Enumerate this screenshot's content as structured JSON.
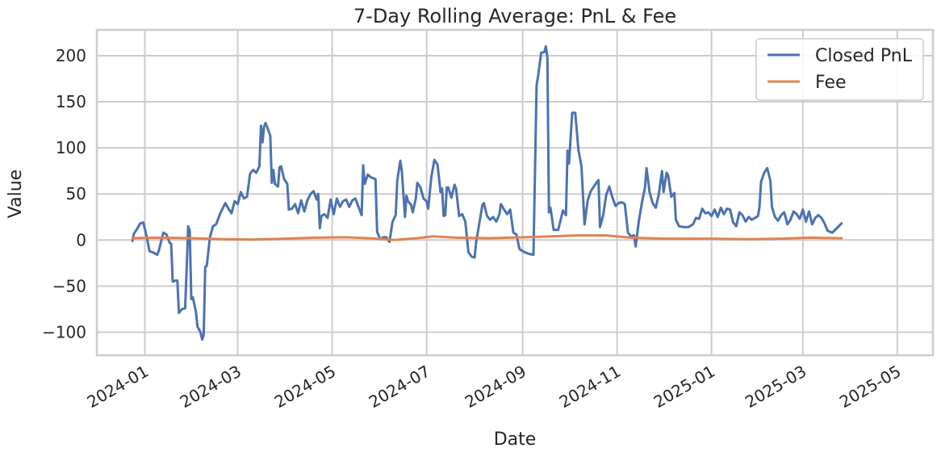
{
  "chart_data": {
    "type": "line",
    "title": "7-Day Rolling Average: PnL & Fee",
    "xlabel": "Date",
    "ylabel": "Value",
    "ylim": [
      -125,
      228
    ],
    "xlim": [
      "2023-12-01",
      "2025-05-24"
    ],
    "y_ticks": [
      -100,
      -50,
      0,
      50,
      100,
      150,
      200
    ],
    "x_ticks": [
      "2024-01",
      "2024-03",
      "2024-05",
      "2024-07",
      "2024-09",
      "2024-11",
      "2025-01",
      "2025-03",
      "2025-05"
    ],
    "grid": true,
    "legend_position": "top-right",
    "series": [
      {
        "name": "Closed PnL",
        "color": "#4c72b0",
        "points": [
          [
            "2023-12-24",
            -1
          ],
          [
            "2023-12-25",
            7
          ],
          [
            "2023-12-27",
            12
          ],
          [
            "2023-12-29",
            18
          ],
          [
            "2023-12-31",
            19
          ],
          [
            "2024-01-02",
            5
          ],
          [
            "2024-01-04",
            -12
          ],
          [
            "2024-01-07",
            -14
          ],
          [
            "2024-01-09",
            -16
          ],
          [
            "2024-01-10",
            -12
          ],
          [
            "2024-01-12",
            2
          ],
          [
            "2024-01-13",
            8
          ],
          [
            "2024-01-15",
            6
          ],
          [
            "2024-01-17",
            -3
          ],
          [
            "2024-01-18",
            -4
          ],
          [
            "2024-01-19",
            -45
          ],
          [
            "2024-01-21",
            -44
          ],
          [
            "2024-01-22",
            -44
          ],
          [
            "2024-01-23",
            -79
          ],
          [
            "2024-01-25",
            -75
          ],
          [
            "2024-01-27",
            -74
          ],
          [
            "2024-01-28",
            -31
          ],
          [
            "2024-01-29",
            15
          ],
          [
            "2024-01-30",
            10
          ],
          [
            "2024-01-31",
            -64
          ],
          [
            "2024-02-01",
            -62
          ],
          [
            "2024-02-03",
            -78
          ],
          [
            "2024-02-04",
            -94
          ],
          [
            "2024-02-06",
            -100
          ],
          [
            "2024-02-07",
            -108
          ],
          [
            "2024-02-08",
            -103
          ],
          [
            "2024-02-09",
            -29
          ],
          [
            "2024-02-10",
            -28
          ],
          [
            "2024-02-12",
            3
          ],
          [
            "2024-02-14",
            15
          ],
          [
            "2024-02-16",
            17
          ],
          [
            "2024-02-19",
            30
          ],
          [
            "2024-02-22",
            40
          ],
          [
            "2024-02-24",
            34
          ],
          [
            "2024-02-26",
            29
          ],
          [
            "2024-02-28",
            42
          ],
          [
            "2024-03-01",
            39
          ],
          [
            "2024-03-03",
            52
          ],
          [
            "2024-03-05",
            45
          ],
          [
            "2024-03-07",
            47
          ],
          [
            "2024-03-09",
            72
          ],
          [
            "2024-03-11",
            76
          ],
          [
            "2024-03-13",
            73
          ],
          [
            "2024-03-15",
            80
          ],
          [
            "2024-03-16",
            124
          ],
          [
            "2024-03-17",
            106
          ],
          [
            "2024-03-18",
            123
          ],
          [
            "2024-03-19",
            127
          ],
          [
            "2024-03-21",
            118
          ],
          [
            "2024-03-22",
            113
          ],
          [
            "2024-03-23",
            62
          ],
          [
            "2024-03-24",
            76
          ],
          [
            "2024-03-25",
            61
          ],
          [
            "2024-03-27",
            58
          ],
          [
            "2024-03-28",
            79
          ],
          [
            "2024-03-29",
            80
          ],
          [
            "2024-03-31",
            66
          ],
          [
            "2024-04-02",
            61
          ],
          [
            "2024-04-03",
            33
          ],
          [
            "2024-04-05",
            34
          ],
          [
            "2024-04-07",
            39
          ],
          [
            "2024-04-09",
            29
          ],
          [
            "2024-04-11",
            43
          ],
          [
            "2024-04-13",
            31
          ],
          [
            "2024-04-15",
            43
          ],
          [
            "2024-04-17",
            50
          ],
          [
            "2024-04-19",
            53
          ],
          [
            "2024-04-21",
            44
          ],
          [
            "2024-04-22",
            50
          ],
          [
            "2024-04-23",
            13
          ],
          [
            "2024-04-24",
            26
          ],
          [
            "2024-04-26",
            28
          ],
          [
            "2024-04-28",
            24
          ],
          [
            "2024-04-30",
            44
          ],
          [
            "2024-05-02",
            28
          ],
          [
            "2024-05-04",
            45
          ],
          [
            "2024-05-06",
            36
          ],
          [
            "2024-05-08",
            42
          ],
          [
            "2024-05-10",
            44
          ],
          [
            "2024-05-12",
            36
          ],
          [
            "2024-05-14",
            43
          ],
          [
            "2024-05-16",
            45
          ],
          [
            "2024-05-18",
            36
          ],
          [
            "2024-05-20",
            27
          ],
          [
            "2024-05-21",
            81
          ],
          [
            "2024-05-22",
            61
          ],
          [
            "2024-05-24",
            71
          ],
          [
            "2024-05-26",
            68
          ],
          [
            "2024-05-29",
            66
          ],
          [
            "2024-05-30",
            9
          ],
          [
            "2024-06-01",
            1
          ],
          [
            "2024-06-03",
            3
          ],
          [
            "2024-06-05",
            3
          ],
          [
            "2024-06-07",
            -2
          ],
          [
            "2024-06-09",
            20
          ],
          [
            "2024-06-11",
            27
          ],
          [
            "2024-06-12",
            64
          ],
          [
            "2024-06-14",
            86
          ],
          [
            "2024-06-15",
            75
          ],
          [
            "2024-06-17",
            25
          ],
          [
            "2024-06-18",
            48
          ],
          [
            "2024-06-19",
            42
          ],
          [
            "2024-06-21",
            38
          ],
          [
            "2024-06-22",
            30
          ],
          [
            "2024-06-24",
            45
          ],
          [
            "2024-06-25",
            62
          ],
          [
            "2024-06-27",
            57
          ],
          [
            "2024-06-29",
            45
          ],
          [
            "2024-07-01",
            42
          ],
          [
            "2024-07-02",
            34
          ],
          [
            "2024-07-04",
            68
          ],
          [
            "2024-07-06",
            87
          ],
          [
            "2024-07-08",
            82
          ],
          [
            "2024-07-10",
            52
          ],
          [
            "2024-07-11",
            56
          ],
          [
            "2024-07-12",
            26
          ],
          [
            "2024-07-13",
            27
          ],
          [
            "2024-07-14",
            57
          ],
          [
            "2024-07-15",
            57
          ],
          [
            "2024-07-17",
            46
          ],
          [
            "2024-07-19",
            60
          ],
          [
            "2024-07-20",
            56
          ],
          [
            "2024-07-22",
            26
          ],
          [
            "2024-07-24",
            28
          ],
          [
            "2024-07-26",
            20
          ],
          [
            "2024-07-28",
            -13
          ],
          [
            "2024-07-30",
            -18
          ],
          [
            "2024-08-01",
            -19
          ],
          [
            "2024-08-02",
            -2
          ],
          [
            "2024-08-04",
            18
          ],
          [
            "2024-08-06",
            38
          ],
          [
            "2024-08-07",
            40
          ],
          [
            "2024-08-09",
            26
          ],
          [
            "2024-08-11",
            22
          ],
          [
            "2024-08-13",
            25
          ],
          [
            "2024-08-15",
            20
          ],
          [
            "2024-08-17",
            28
          ],
          [
            "2024-08-18",
            39
          ],
          [
            "2024-08-20",
            33
          ],
          [
            "2024-08-22",
            28
          ],
          [
            "2024-08-24",
            33
          ],
          [
            "2024-08-26",
            8
          ],
          [
            "2024-08-28",
            6
          ],
          [
            "2024-08-30",
            -10
          ],
          [
            "2024-09-02",
            -13
          ],
          [
            "2024-09-05",
            -15
          ],
          [
            "2024-09-08",
            -16
          ],
          [
            "2024-09-10",
            168
          ],
          [
            "2024-09-11",
            178
          ],
          [
            "2024-09-13",
            203
          ],
          [
            "2024-09-15",
            204
          ],
          [
            "2024-09-16",
            210
          ],
          [
            "2024-09-17",
            198
          ],
          [
            "2024-09-18",
            30
          ],
          [
            "2024-09-19",
            35
          ],
          [
            "2024-09-21",
            11
          ],
          [
            "2024-09-24",
            11
          ],
          [
            "2024-09-27",
            32
          ],
          [
            "2024-09-29",
            27
          ],
          [
            "2024-09-30",
            97
          ],
          [
            "2024-10-01",
            83
          ],
          [
            "2024-10-03",
            138
          ],
          [
            "2024-10-05",
            138
          ],
          [
            "2024-10-07",
            98
          ],
          [
            "2024-10-09",
            80
          ],
          [
            "2024-10-11",
            17
          ],
          [
            "2024-10-13",
            43
          ],
          [
            "2024-10-15",
            53
          ],
          [
            "2024-10-17",
            58
          ],
          [
            "2024-10-19",
            63
          ],
          [
            "2024-10-20",
            65
          ],
          [
            "2024-10-21",
            14
          ],
          [
            "2024-10-23",
            27
          ],
          [
            "2024-10-25",
            49
          ],
          [
            "2024-10-27",
            58
          ],
          [
            "2024-10-29",
            46
          ],
          [
            "2024-10-31",
            37
          ],
          [
            "2024-11-02",
            40
          ],
          [
            "2024-11-04",
            41
          ],
          [
            "2024-11-06",
            39
          ],
          [
            "2024-11-08",
            8
          ],
          [
            "2024-11-10",
            4
          ],
          [
            "2024-11-12",
            5
          ],
          [
            "2024-11-13",
            -7
          ],
          [
            "2024-11-15",
            20
          ],
          [
            "2024-11-17",
            40
          ],
          [
            "2024-11-19",
            57
          ],
          [
            "2024-11-20",
            78
          ],
          [
            "2024-11-22",
            52
          ],
          [
            "2024-11-24",
            40
          ],
          [
            "2024-11-26",
            35
          ],
          [
            "2024-11-28",
            50
          ],
          [
            "2024-11-30",
            75
          ],
          [
            "2024-12-01",
            52
          ],
          [
            "2024-12-03",
            73
          ],
          [
            "2024-12-04",
            70
          ],
          [
            "2024-12-06",
            47
          ],
          [
            "2024-12-08",
            51
          ],
          [
            "2024-12-09",
            22
          ],
          [
            "2024-12-11",
            15
          ],
          [
            "2024-12-14",
            14
          ],
          [
            "2024-12-17",
            14
          ],
          [
            "2024-12-20",
            17
          ],
          [
            "2024-12-22",
            24
          ],
          [
            "2024-12-24",
            23
          ],
          [
            "2024-12-26",
            34
          ],
          [
            "2024-12-28",
            29
          ],
          [
            "2024-12-30",
            30
          ],
          [
            "2025-01-01",
            26
          ],
          [
            "2025-01-03",
            33
          ],
          [
            "2025-01-05",
            25
          ],
          [
            "2025-01-07",
            35
          ],
          [
            "2025-01-09",
            28
          ],
          [
            "2025-01-11",
            34
          ],
          [
            "2025-01-13",
            33
          ],
          [
            "2025-01-15",
            19
          ],
          [
            "2025-01-17",
            15
          ],
          [
            "2025-01-19",
            30
          ],
          [
            "2025-01-21",
            27
          ],
          [
            "2025-01-23",
            20
          ],
          [
            "2025-01-25",
            25
          ],
          [
            "2025-01-27",
            22
          ],
          [
            "2025-01-29",
            24
          ],
          [
            "2025-01-31",
            26
          ],
          [
            "2025-02-01",
            36
          ],
          [
            "2025-02-02",
            63
          ],
          [
            "2025-02-04",
            73
          ],
          [
            "2025-02-06",
            78
          ],
          [
            "2025-02-08",
            64
          ],
          [
            "2025-02-09",
            36
          ],
          [
            "2025-02-11",
            25
          ],
          [
            "2025-02-13",
            21
          ],
          [
            "2025-02-15",
            27
          ],
          [
            "2025-02-17",
            30
          ],
          [
            "2025-02-19",
            17
          ],
          [
            "2025-02-21",
            22
          ],
          [
            "2025-02-23",
            31
          ],
          [
            "2025-02-25",
            28
          ],
          [
            "2025-02-27",
            23
          ],
          [
            "2025-03-01",
            33
          ],
          [
            "2025-03-03",
            20
          ],
          [
            "2025-03-05",
            31
          ],
          [
            "2025-03-07",
            17
          ],
          [
            "2025-03-09",
            24
          ],
          [
            "2025-03-11",
            27
          ],
          [
            "2025-03-13",
            24
          ],
          [
            "2025-03-15",
            18
          ],
          [
            "2025-03-17",
            10
          ],
          [
            "2025-03-20",
            8
          ],
          [
            "2025-03-23",
            13
          ],
          [
            "2025-03-26",
            18
          ]
        ]
      },
      {
        "name": "Fee",
        "color": "#dd8452",
        "points": [
          [
            "2023-12-24",
            2
          ],
          [
            "2024-01-10",
            2.5
          ],
          [
            "2024-01-31",
            2
          ],
          [
            "2024-02-20",
            1
          ],
          [
            "2024-03-10",
            0.5
          ],
          [
            "2024-04-01",
            1.5
          ],
          [
            "2024-04-20",
            2.5
          ],
          [
            "2024-05-10",
            3
          ],
          [
            "2024-05-31",
            1.5
          ],
          [
            "2024-06-10",
            0
          ],
          [
            "2024-06-25",
            2
          ],
          [
            "2024-07-05",
            4
          ],
          [
            "2024-07-20",
            2.5
          ],
          [
            "2024-08-10",
            2
          ],
          [
            "2024-09-01",
            3
          ],
          [
            "2024-09-20",
            4
          ],
          [
            "2024-10-05",
            5
          ],
          [
            "2024-10-25",
            5
          ],
          [
            "2024-11-10",
            2.5
          ],
          [
            "2024-12-01",
            1.5
          ],
          [
            "2025-01-01",
            1.5
          ],
          [
            "2025-01-25",
            1
          ],
          [
            "2025-02-15",
            1.5
          ],
          [
            "2025-03-05",
            2.5
          ],
          [
            "2025-03-26",
            2
          ]
        ]
      }
    ]
  }
}
